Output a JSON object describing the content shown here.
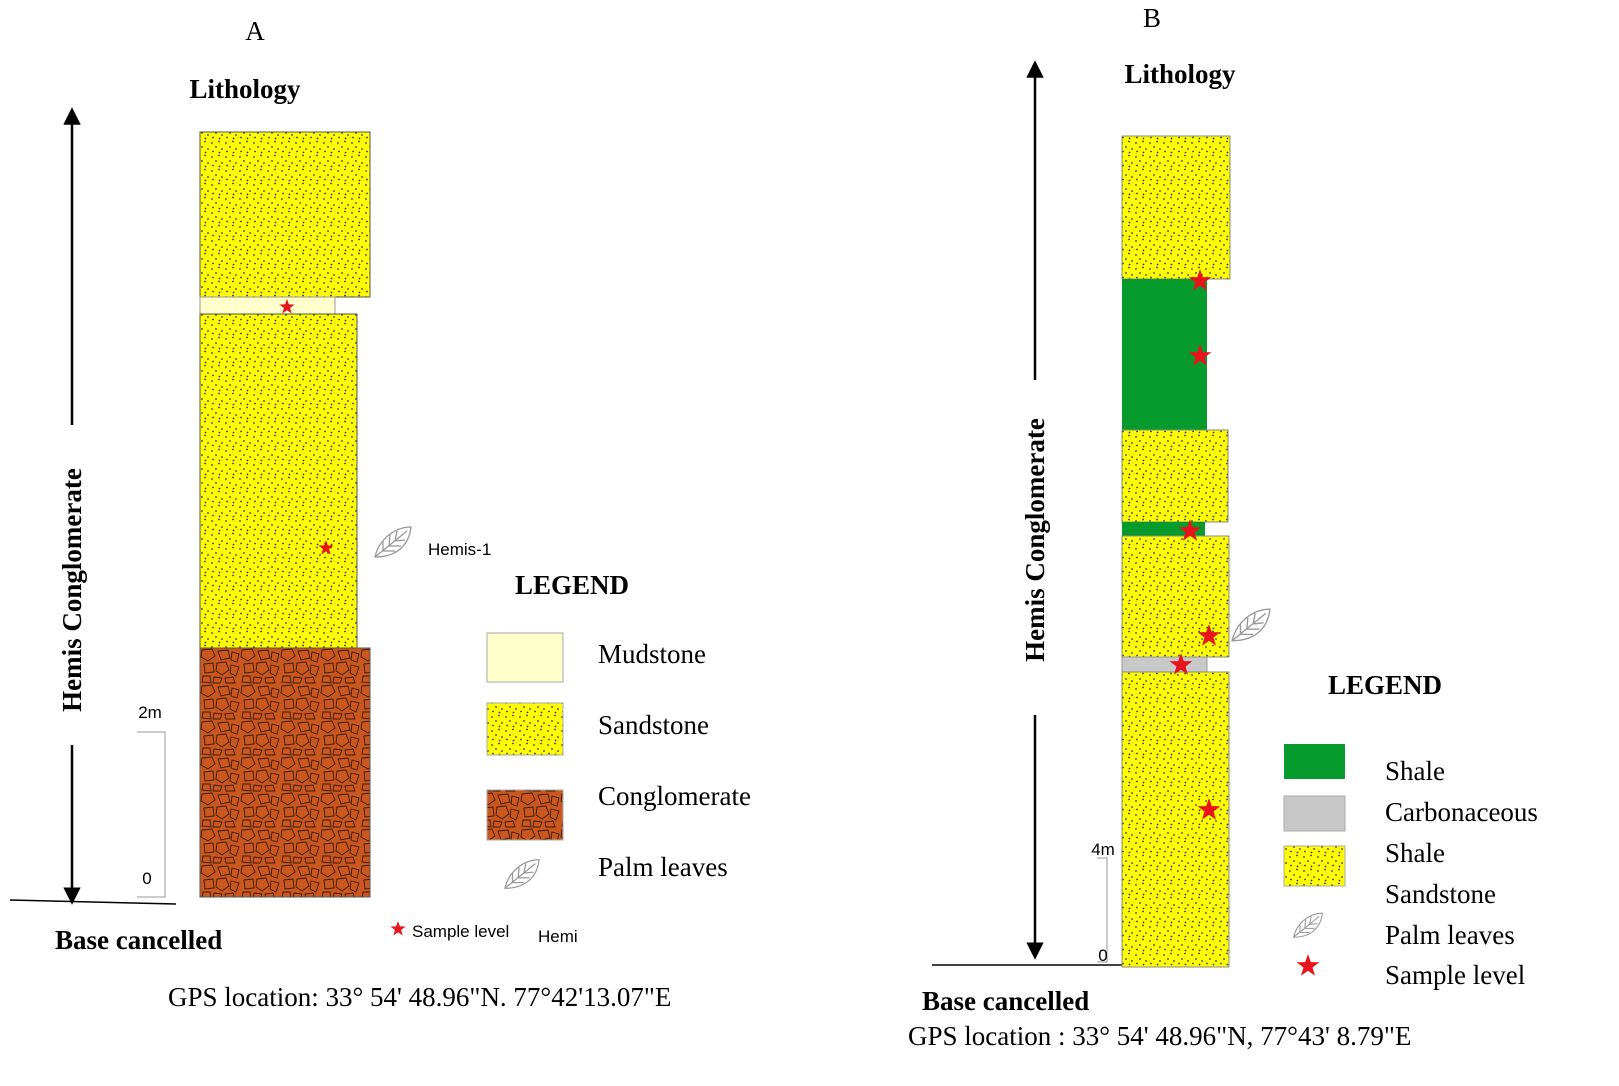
{
  "panels": [
    {
      "label": "A",
      "lithology_title": "Lithology",
      "formation": "Hemis Conglomerate",
      "scale_top": "2m",
      "scale_bottom": "0",
      "base": "Base cancelled",
      "sample_name": "Hemis-1",
      "sample_note": {
        "text": "Sample level",
        "suffix": "Hemi"
      },
      "gps": "GPS location: 33° 54' 48.96\"N.  77°42'13.07\"E",
      "legend": {
        "title": "LEGEND",
        "items": [
          "Mudstone",
          "Sandstone",
          "Conglomerate",
          "Palm leaves"
        ]
      }
    },
    {
      "label": "B",
      "lithology_title": "Lithology",
      "formation": "Hemis Conglomerate",
      "scale_top": "4m",
      "scale_bottom": "0",
      "base": "Base cancelled",
      "gps": "GPS location : 33° 54' 48.96\"N,  77°43' 8.79\"E",
      "legend": {
        "title": "LEGEND",
        "items": [
          "Shale",
          "Carbonaceous",
          "Shale",
          "Sandstone",
          "Palm leaves",
          "Sample level"
        ]
      }
    }
  ]
}
